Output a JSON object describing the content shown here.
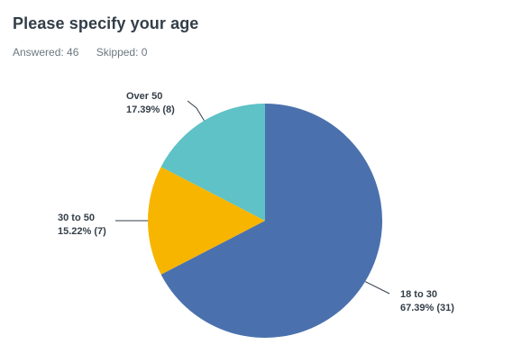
{
  "question": {
    "title": "Please specify your age",
    "answered": "Answered: 46",
    "skipped": "Skipped: 0"
  },
  "chart_data": {
    "type": "pie",
    "total": 46,
    "slices": [
      {
        "label": "18 to 30",
        "percent": 67.39,
        "count": 31,
        "text": "67.39% (31)",
        "color": "#4a71ad"
      },
      {
        "label": "30 to 50",
        "percent": 15.22,
        "count": 7,
        "text": "15.22% (7)",
        "color": "#f7b500"
      },
      {
        "label": "Over 50",
        "percent": 17.39,
        "count": 8,
        "text": "17.39% (8)",
        "color": "#5ec2c6"
      }
    ]
  }
}
